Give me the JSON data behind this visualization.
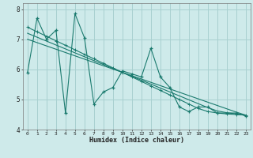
{
  "xlabel": "Humidex (Indice chaleur)",
  "bg_color": "#ceeaea",
  "grid_color": "#a8d0d0",
  "line_color": "#1a7a6e",
  "x_data": [
    0,
    1,
    2,
    3,
    4,
    5,
    6,
    7,
    8,
    9,
    10,
    11,
    12,
    13,
    14,
    15,
    16,
    17,
    18,
    19,
    20,
    21,
    22,
    23
  ],
  "y_main": [
    5.9,
    7.7,
    7.0,
    7.3,
    4.55,
    7.85,
    7.05,
    4.85,
    5.25,
    5.4,
    5.95,
    5.85,
    5.75,
    6.7,
    5.75,
    5.4,
    4.75,
    4.6,
    4.75,
    4.75,
    4.55,
    4.55,
    4.55,
    4.45
  ],
  "y_trend1": [
    7.4,
    7.25,
    7.1,
    6.95,
    6.8,
    6.65,
    6.5,
    6.35,
    6.2,
    6.05,
    5.9,
    5.75,
    5.6,
    5.45,
    5.3,
    5.15,
    5.0,
    4.85,
    4.7,
    4.6,
    4.55,
    4.52,
    4.5,
    4.48
  ],
  "y_trend2": [
    7.2,
    7.07,
    6.94,
    6.81,
    6.68,
    6.55,
    6.42,
    6.29,
    6.16,
    6.03,
    5.9,
    5.77,
    5.64,
    5.51,
    5.38,
    5.25,
    5.12,
    4.99,
    4.86,
    4.73,
    4.62,
    4.56,
    4.52,
    4.48
  ],
  "y_trend3": [
    7.0,
    6.89,
    6.78,
    6.67,
    6.56,
    6.45,
    6.34,
    6.23,
    6.12,
    6.01,
    5.9,
    5.79,
    5.68,
    5.57,
    5.46,
    5.35,
    5.24,
    5.13,
    5.02,
    4.91,
    4.8,
    4.69,
    4.58,
    4.48
  ],
  "ylim": [
    4.0,
    8.2
  ],
  "xlim": [
    -0.5,
    23.5
  ],
  "yticks": [
    4,
    5,
    6,
    7,
    8
  ],
  "xticks": [
    0,
    1,
    2,
    3,
    4,
    5,
    6,
    7,
    8,
    9,
    10,
    11,
    12,
    13,
    14,
    15,
    16,
    17,
    18,
    19,
    20,
    21,
    22,
    23
  ]
}
